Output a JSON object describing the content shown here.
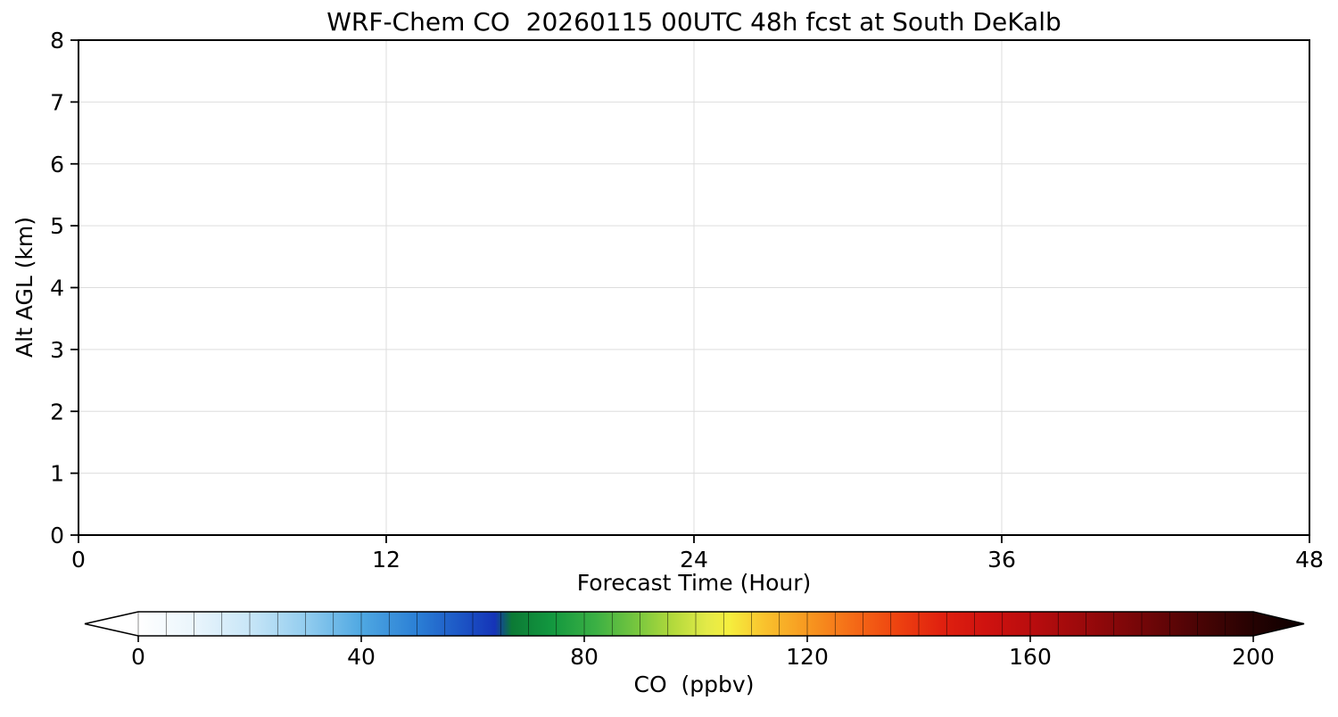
{
  "chart_data": {
    "type": "heatmap",
    "title": "WRF-Chem CO  20260115 00UTC 48h fcst at South DeKalb",
    "xlabel": "Forecast Time (Hour)",
    "ylabel": "Alt AGL (km)",
    "xlim": [
      0,
      48
    ],
    "ylim": [
      0,
      8
    ],
    "x_ticks": [
      0,
      12,
      24,
      36,
      48
    ],
    "y_ticks": [
      0,
      1,
      2,
      3,
      4,
      5,
      6,
      7,
      8
    ],
    "grid": true,
    "values": [],
    "data_note": "Plot panel is blank white; no CO contour/shaded data is visible for this forecast.",
    "colorbar": {
      "label": "CO  (ppbv)",
      "ticks": [
        0,
        40,
        80,
        120,
        160,
        200
      ],
      "range": [
        0,
        200
      ],
      "extend": "both",
      "level_step": 5,
      "stops": [
        [
          -10,
          "#ffffff"
        ],
        [
          0,
          "#ffffff"
        ],
        [
          10,
          "#eaf5fc"
        ],
        [
          20,
          "#c8e6f7"
        ],
        [
          30,
          "#93cdef"
        ],
        [
          40,
          "#4fa8e2"
        ],
        [
          50,
          "#2b7fd5"
        ],
        [
          58,
          "#1c55c5"
        ],
        [
          64,
          "#1534b8"
        ],
        [
          67,
          "#0c7a35"
        ],
        [
          74,
          "#12973f"
        ],
        [
          82,
          "#3bb044"
        ],
        [
          90,
          "#7cc83e"
        ],
        [
          96,
          "#b4da3c"
        ],
        [
          102,
          "#e3ea48"
        ],
        [
          106,
          "#f5ee3e"
        ],
        [
          112,
          "#f9c42e"
        ],
        [
          120,
          "#f79820"
        ],
        [
          128,
          "#f56c17"
        ],
        [
          136,
          "#ee4310"
        ],
        [
          144,
          "#e0210f"
        ],
        [
          152,
          "#cf120f"
        ],
        [
          160,
          "#ba0d0e"
        ],
        [
          170,
          "#99090b"
        ],
        [
          180,
          "#740608"
        ],
        [
          190,
          "#4b0405"
        ],
        [
          200,
          "#250202"
        ],
        [
          210,
          "#0a0000"
        ]
      ]
    }
  }
}
